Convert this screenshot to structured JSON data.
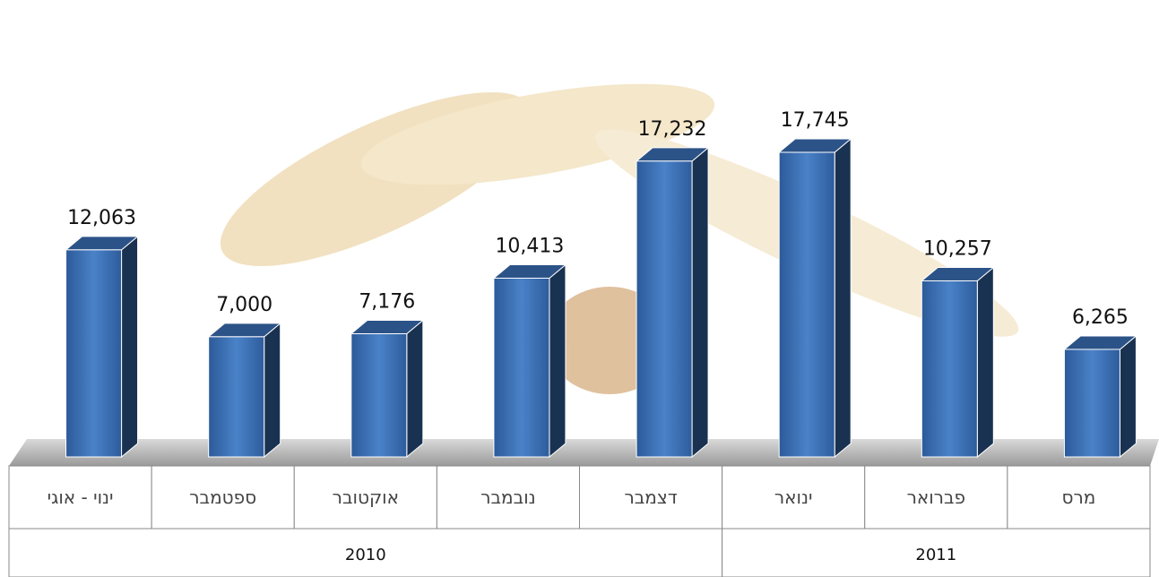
{
  "chart_data": {
    "type": "bar3d",
    "categories": [
      "ינוי - אוגי",
      "ספטמבר",
      "אוקטובר",
      "נובמבר",
      "דצמבר",
      "ינואר",
      "פברואר",
      "מרס"
    ],
    "values": [
      12063,
      7000,
      7176,
      10413,
      17232,
      17745,
      10257,
      6265
    ],
    "value_labels": [
      "12,063",
      "7,000",
      "7,176",
      "10,413",
      "17,232",
      "17,745",
      "10,257",
      "6,265"
    ],
    "groups": [
      {
        "label": "2010",
        "count": 5
      },
      {
        "label": "2011",
        "count": 3
      }
    ],
    "color": "#3a6fb5"
  }
}
